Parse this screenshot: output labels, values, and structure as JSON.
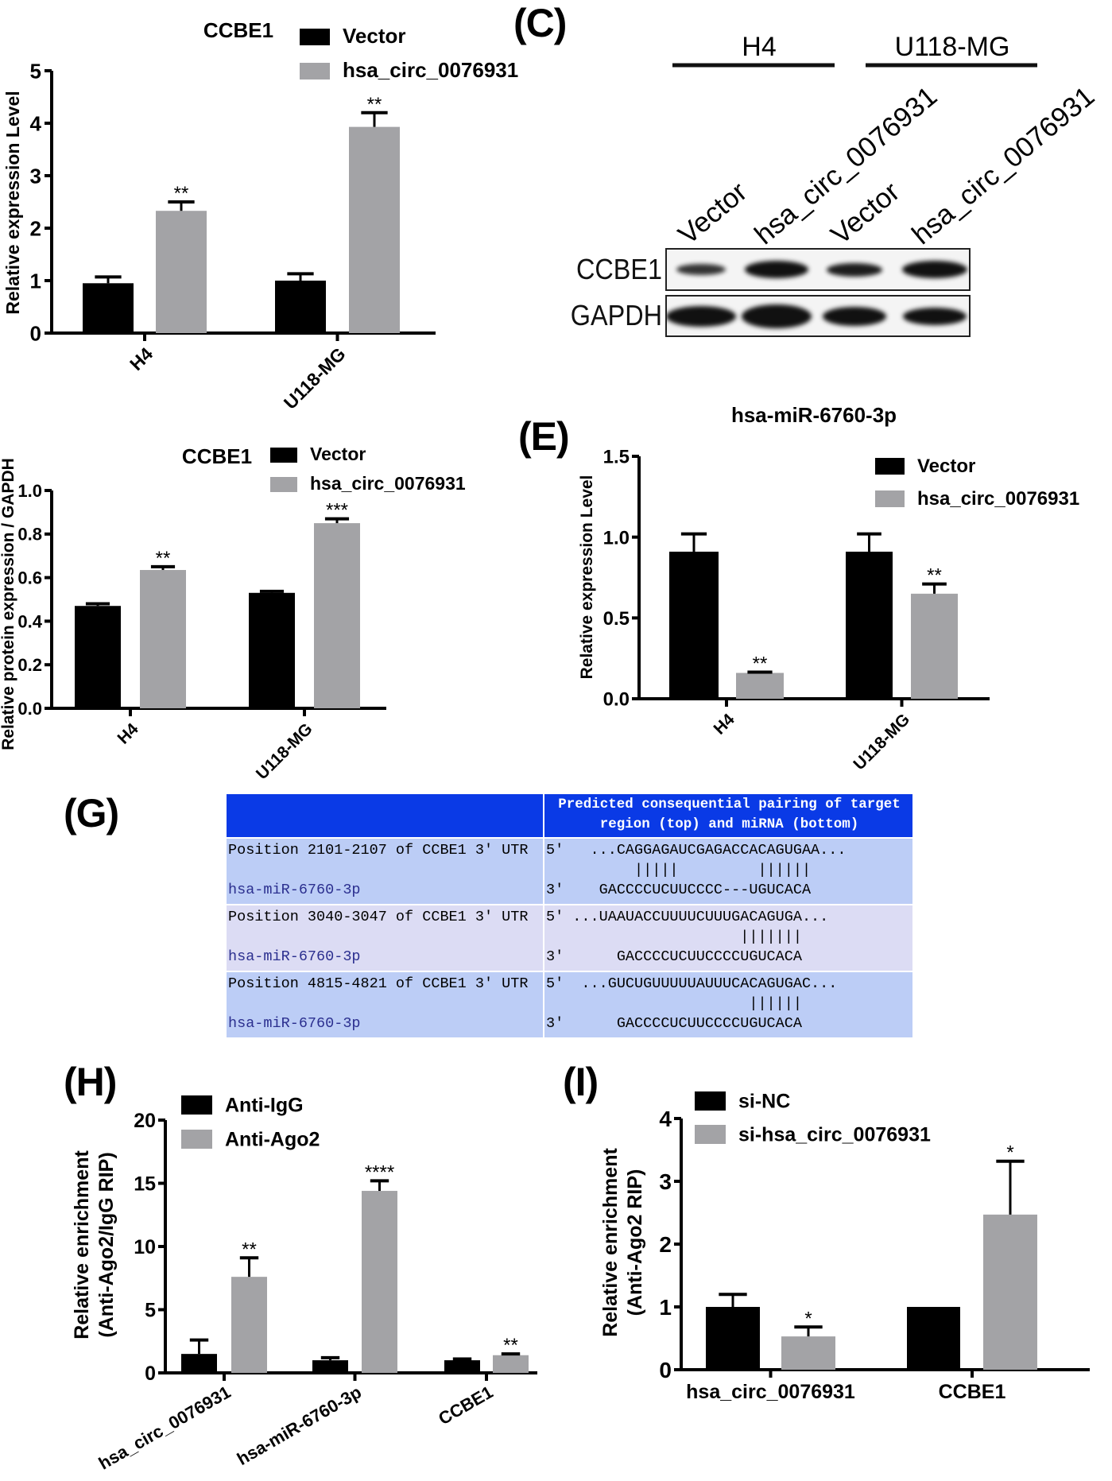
{
  "panel_labels": {
    "c": "(C)",
    "e": "(E)",
    "g": "(G)",
    "h": "(H)",
    "i": "(I)"
  },
  "colors": {
    "black_series": "#000000",
    "gray_series": "#a3a3a6",
    "table_header": "#0a3ae6",
    "table_row_a": "#bccdf6",
    "table_row_b": "#dcdcf4"
  },
  "western_blot": {
    "groups": [
      "H4",
      "U118-MG"
    ],
    "lanes": [
      "Vector",
      "hsa_circ_0076931",
      "Vector",
      "hsa_circ_0076931"
    ],
    "rows": [
      "CCBE1",
      "GAPDH"
    ]
  },
  "target_table": {
    "header": [
      "",
      "Predicted consequential pairing of target\nregion (top) and miRNA (bottom)"
    ],
    "rows": [
      {
        "position": "Position 2101-2107 of CCBE1 3' UTR",
        "mirna": "hsa-miR-6760-3p",
        "top": "5'   ...CAGGAGAUCGAGACCACAGUGAA...",
        "pairs": "          |||||         ||||||",
        "bottom": "3'    GACCCCUCUUCCCC---UGUCACA"
      },
      {
        "position": "Position 3040-3047 of CCBE1 3' UTR",
        "mirna": "hsa-miR-6760-3p",
        "top": "5' ...UAAUACCUUUUCUUUGACAGUGA...",
        "pairs": "                      |||||||",
        "bottom": "3'      GACCCCUCUUCCCCUGUCACA"
      },
      {
        "position": "Position 4815-4821 of CCBE1 3' UTR",
        "mirna": "hsa-miR-6760-3p",
        "top": "5'  ...GUCUGUUUUUAUUUCACAGUGAC...",
        "pairs": "                       ||||||",
        "bottom": "3'      GACCCCUCUUCCCCUGUCACA"
      }
    ]
  },
  "chart_data": [
    {
      "type": "bar",
      "title": "CCBE1",
      "ylabel": [
        "Relative expression Level"
      ],
      "categories": [
        "H4",
        "U118-MG"
      ],
      "ylim": [
        0,
        5
      ],
      "yticks": [
        "0",
        "1",
        "2",
        "3",
        "4",
        "5"
      ],
      "xlabel_rotation": "rotated",
      "grid": false,
      "legend": "top",
      "series": [
        {
          "name": "Vector",
          "color": "#000000",
          "values": [
            0.95,
            1.0
          ],
          "errors": [
            0.12,
            0.13
          ],
          "significance": [
            "",
            ""
          ]
        },
        {
          "name": "hsa_circ_0076931",
          "color": "#a3a3a6",
          "values": [
            2.33,
            3.93
          ],
          "errors": [
            0.17,
            0.27
          ],
          "significance": [
            "**",
            "**"
          ]
        }
      ]
    },
    {
      "type": "bar",
      "title": "CCBE1",
      "ylabel": [
        "Relative protein expression / GAPDH"
      ],
      "categories": [
        "H4",
        "U118-MG"
      ],
      "ylim": [
        0,
        1.0
      ],
      "yticks": [
        "0.0",
        "0.2",
        "0.4",
        "0.6",
        "0.8",
        "1.0"
      ],
      "grid": false,
      "legend": "top",
      "series": [
        {
          "name": "Vector",
          "color": "#000000",
          "values": [
            0.47,
            0.53
          ],
          "errors": [
            0.01,
            0.007
          ],
          "significance": [
            "",
            ""
          ]
        },
        {
          "name": "hsa_circ_0076931",
          "color": "#a3a3a6",
          "values": [
            0.635,
            0.85
          ],
          "errors": [
            0.015,
            0.02
          ],
          "significance": [
            "**",
            "***"
          ]
        }
      ]
    },
    {
      "type": "bar",
      "title": "hsa-miR-6760-3p",
      "ylabel": [
        "Relative expression Level"
      ],
      "categories": [
        "H4",
        "U118-MG"
      ],
      "ylim": [
        0,
        1.5
      ],
      "yticks": [
        "0.0",
        "0.5",
        "1.0",
        "1.5"
      ],
      "grid": false,
      "legend": "top-right",
      "series": [
        {
          "name": "Vector",
          "color": "#000000",
          "values": [
            0.91,
            0.91
          ],
          "errors": [
            0.11,
            0.11
          ],
          "significance": [
            "",
            ""
          ]
        },
        {
          "name": "hsa_circ_0076931",
          "color": "#a3a3a6",
          "values": [
            0.16,
            0.65
          ],
          "errors": [
            0.005,
            0.06
          ],
          "significance": [
            "**",
            "**"
          ]
        }
      ]
    },
    {
      "type": "bar",
      "title": "",
      "ylabel": [
        "Relative enrichment",
        "(Anti-Ago2/IgG RIP)"
      ],
      "categories": [
        "hsa_circ_0076931",
        "hsa-miR-6760-3p",
        "CCBE1"
      ],
      "ylim": [
        0,
        20
      ],
      "yticks": [
        "0",
        "5",
        "10",
        "15",
        "20"
      ],
      "grid": false,
      "legend": "top-left",
      "series": [
        {
          "name": "Anti-IgG",
          "color": "#000000",
          "values": [
            1.5,
            1.0,
            1.0
          ],
          "errors": [
            1.1,
            0.2,
            0.1
          ],
          "significance": [
            "",
            "",
            ""
          ]
        },
        {
          "name": "Anti-Ago2",
          "color": "#a3a3a6",
          "values": [
            7.6,
            14.4,
            1.4
          ],
          "errors": [
            1.5,
            0.8,
            0.1
          ],
          "significance": [
            "**",
            "****",
            "**"
          ]
        }
      ]
    },
    {
      "type": "bar",
      "title": "",
      "ylabel": [
        "Relative enrichment",
        "(Anti-Ago2 RIP)"
      ],
      "categories": [
        "hsa_circ_0076931",
        "CCBE1"
      ],
      "ylim": [
        0,
        4
      ],
      "yticks": [
        "0",
        "1",
        "2",
        "3",
        "4"
      ],
      "grid": false,
      "legend": "top-left",
      "series": [
        {
          "name": "si-NC",
          "color": "#000000",
          "values": [
            1.0,
            1.0
          ],
          "errors": [
            0.2,
            0.0
          ],
          "significance": [
            "",
            ""
          ]
        },
        {
          "name": "si-hsa_circ_0076931",
          "color": "#a3a3a6",
          "values": [
            0.53,
            2.47
          ],
          "errors": [
            0.15,
            0.85
          ],
          "significance": [
            "*",
            "*"
          ]
        }
      ]
    }
  ]
}
